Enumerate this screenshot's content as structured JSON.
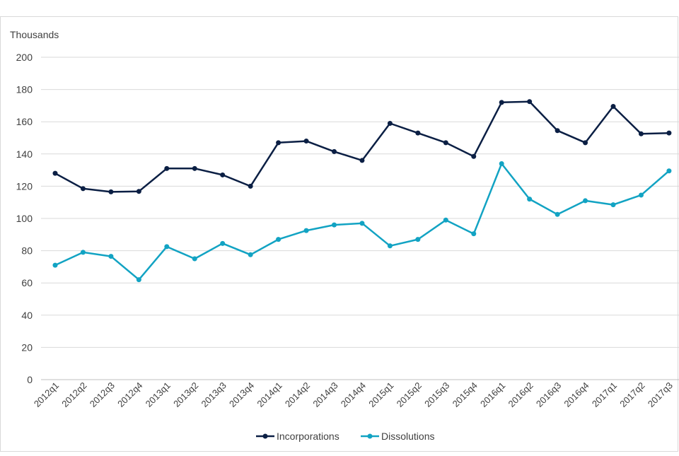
{
  "chart_data": {
    "type": "line",
    "unit_label": "Thousands",
    "ylim": [
      0,
      200
    ],
    "yticks": [
      "0",
      "20",
      "40",
      "60",
      "80",
      "100",
      "120",
      "140",
      "160",
      "180",
      "200"
    ],
    "grid": true,
    "legend_position": "bottom",
    "categories": [
      "2012q1",
      "2012q2",
      "2012q3",
      "2012q4",
      "2013q1",
      "2013q2",
      "2013q3",
      "2013q4",
      "2014q1",
      "2014q2",
      "2014q3",
      "2014q4",
      "2015q1",
      "2015q2",
      "2015q3",
      "2015q4",
      "2016q1",
      "2016q2",
      "2016q3",
      "2016q4",
      "2017q1",
      "2017q2",
      "2017q3"
    ],
    "series": [
      {
        "name": "Incorporations",
        "color": "#0b1f44",
        "values": [
          128,
          118.5,
          116.5,
          116.8,
          131,
          131,
          127,
          120,
          147,
          148,
          141.5,
          136,
          159,
          153,
          147,
          138.5,
          172,
          172.5,
          154.5,
          147,
          169.5,
          152.5,
          153
        ]
      },
      {
        "name": "Dissolutions",
        "color": "#12a3c3",
        "values": [
          71,
          79,
          76.5,
          62,
          82.5,
          75,
          84.5,
          77.5,
          87,
          92.5,
          96,
          97,
          83,
          87,
          99,
          90.5,
          134,
          112,
          102.5,
          111,
          108.5,
          114.5,
          129.5
        ]
      }
    ]
  }
}
